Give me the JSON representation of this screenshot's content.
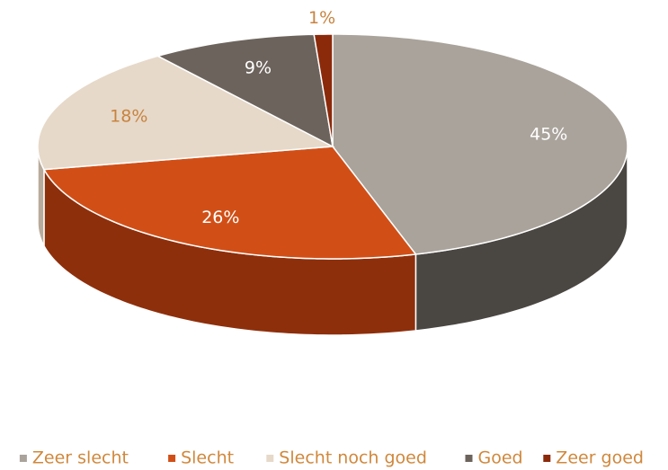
{
  "chart_data": {
    "type": "pie",
    "three_d": true,
    "categories": [
      "Zeer slecht",
      "Slecht",
      "Slecht noch goed",
      "Goed",
      "Zeer goed"
    ],
    "values": [
      45,
      26,
      18,
      9,
      1
    ],
    "value_labels": [
      "45%",
      "26%",
      "18%",
      "9%",
      "1%"
    ],
    "colors": [
      "#aaa39b",
      "#d14f17",
      "#e6d9c9",
      "#6c635c",
      "#8b2a0b"
    ],
    "side_colors": [
      "#4a4642",
      "#8e2f0c",
      "#b8ab9b",
      "#3f3935",
      "#5a1a06"
    ],
    "legend": "bottom"
  }
}
